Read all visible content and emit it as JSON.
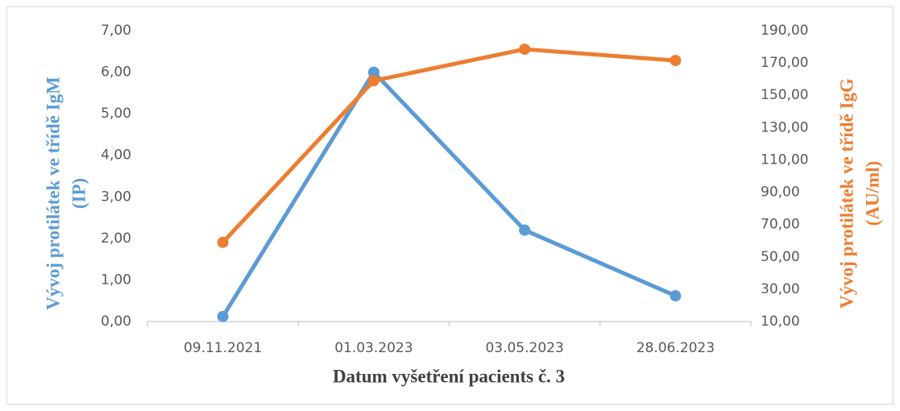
{
  "chart_data": {
    "type": "line",
    "xlabel": "Datum vyšetření pacients č. 3",
    "ylabel": [
      "Vývoj protilátek ve třídě IgM",
      "(IP)"
    ],
    "y2label": [
      "Vývoj protilátek ve třídě IgG",
      "(AU/ml)"
    ],
    "categories": [
      "09.11.2021",
      "01.03.2023",
      "03.05.2023",
      "28.06.2023"
    ],
    "series": [
      {
        "name": "IgM",
        "color": "#5b9bd5",
        "values": [
          0.12,
          6.0,
          2.2,
          0.62
        ]
      },
      {
        "name": "IgG",
        "color": "#ed7d31",
        "axis": "y2",
        "values": [
          59,
          159,
          178.5,
          171.5
        ]
      }
    ],
    "ylim": [
      0,
      7
    ],
    "yticks": [
      {
        "value": 0,
        "label": "0,00"
      },
      {
        "value": 1,
        "label": "1,00"
      },
      {
        "value": 2,
        "label": "2,00"
      },
      {
        "value": 3,
        "label": "3,00"
      },
      {
        "value": 4,
        "label": "4,00"
      },
      {
        "value": 5,
        "label": "5,00"
      },
      {
        "value": 6,
        "label": "6,00"
      },
      {
        "value": 7,
        "label": "7,00"
      }
    ],
    "y2lim": [
      10,
      190
    ],
    "y2ticks": [
      {
        "value": 10,
        "label": "10,00"
      },
      {
        "value": 30,
        "label": "30,00"
      },
      {
        "value": 50,
        "label": "50,00"
      },
      {
        "value": 70,
        "label": "70,00"
      },
      {
        "value": 90,
        "label": "90,00"
      },
      {
        "value": 110,
        "label": "110,00"
      },
      {
        "value": 130,
        "label": "130,00"
      },
      {
        "value": 150,
        "label": "150,00"
      },
      {
        "value": 170,
        "label": "170,00"
      },
      {
        "value": 190,
        "label": "190,00"
      }
    ],
    "grid": false
  }
}
